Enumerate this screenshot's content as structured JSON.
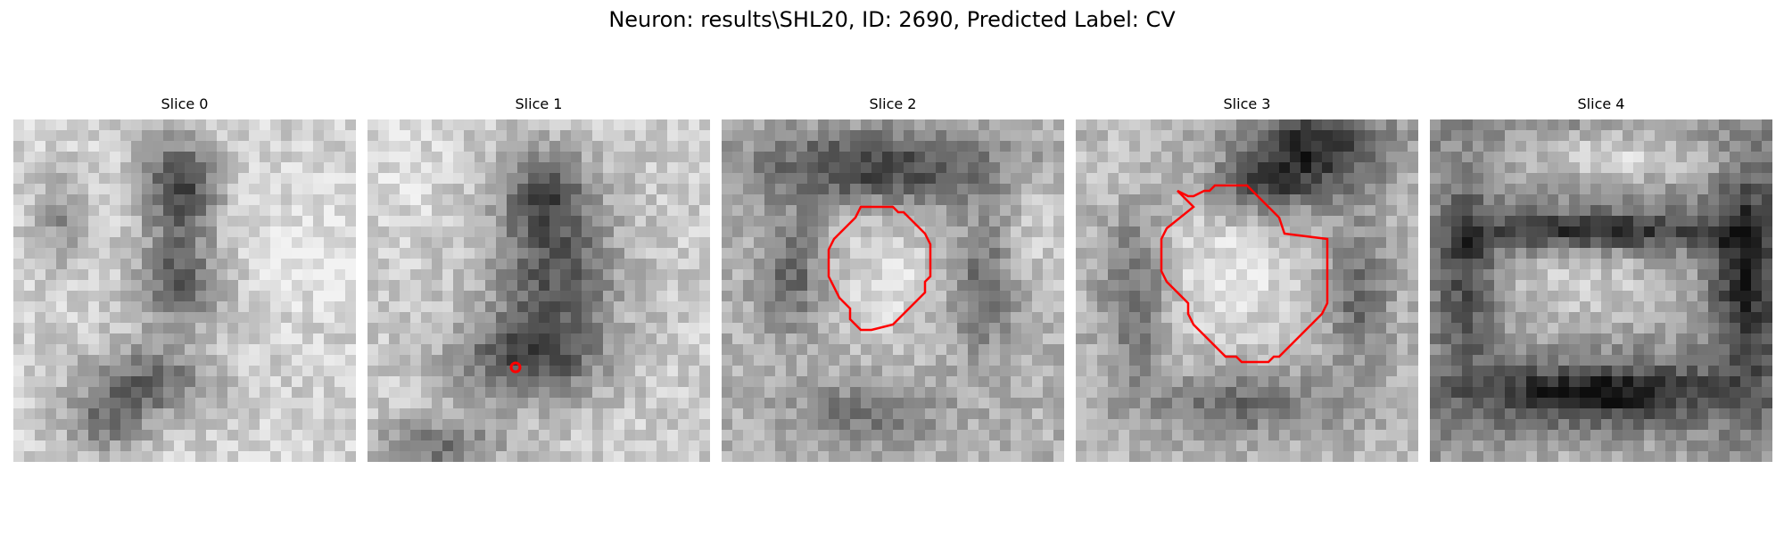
{
  "figure": {
    "title": "Neuron: results\\SHL20, ID: 2690, Predicted Label: CV"
  },
  "colors": {
    "contour": "#ff0000",
    "marker": "#ff0000",
    "background": "#ffffff"
  },
  "slices": [
    {
      "label": "Slice 0",
      "pattern": "dark-vertical-band",
      "has_contour": false,
      "has_marker": false
    },
    {
      "label": "Slice 1",
      "pattern": "dark-triangle",
      "has_contour": false,
      "has_marker": true
    },
    {
      "label": "Slice 2",
      "pattern": "bright-center-dark-top",
      "has_contour": true,
      "has_marker": false
    },
    {
      "label": "Slice 3",
      "pattern": "bright-center-dark-ring",
      "has_contour": true,
      "has_marker": false
    },
    {
      "label": "Slice 4",
      "pattern": "bright-oval-dark-frame",
      "has_contour": false,
      "has_marker": false
    }
  ]
}
